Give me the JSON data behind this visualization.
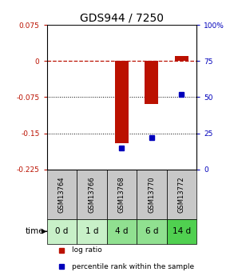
{
  "title": "GDS944 / 7250",
  "categories": [
    "GSM13764",
    "GSM13766",
    "GSM13768",
    "GSM13770",
    "GSM13772"
  ],
  "time_labels": [
    "0 d",
    "1 d",
    "4 d",
    "6 d",
    "14 d"
  ],
  "log_ratio": [
    0.0,
    0.0,
    -0.17,
    -0.09,
    0.01
  ],
  "percentile_rank": [
    null,
    null,
    15,
    22,
    52
  ],
  "ylim_left": [
    -0.225,
    0.075
  ],
  "ylim_right": [
    0,
    100
  ],
  "yticks_left": [
    0.075,
    0,
    -0.075,
    -0.15,
    -0.225
  ],
  "yticks_right": [
    100,
    75,
    50,
    25,
    0
  ],
  "bar_color": "#bb1100",
  "dot_color": "#0000bb",
  "bg_color": "#ffffff",
  "plot_bg": "#ffffff",
  "dashed_zero_color": "#bb1100",
  "title_fontsize": 10,
  "tick_fontsize": 6.5,
  "gsm_fontsize": 6.0,
  "time_fontsize": 7.5,
  "legend_fontsize": 6.5,
  "gsm_bg": "#c8c8c8",
  "time_bg_colors": [
    "#c8f0c8",
    "#c8f0c8",
    "#90e090",
    "#90e090",
    "#50d050"
  ],
  "legend_log_color": "#bb1100",
  "legend_pct_color": "#0000bb",
  "bar_width": 0.45
}
